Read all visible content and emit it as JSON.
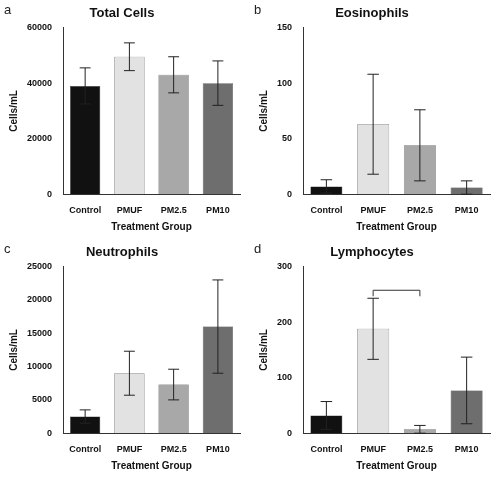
{
  "chart_data": [
    {
      "type": "bar",
      "panel": "a",
      "title": "Total Cells",
      "x_label": "Treatment Group",
      "y_label": "Cells/mL",
      "categories": [
        "Control",
        "PMUF",
        "PM2.5",
        "PM10"
      ],
      "values": [
        39000,
        49500,
        43000,
        40000
      ],
      "errors": [
        6500,
        5000,
        6500,
        8000
      ],
      "colors": [
        "#111111",
        "#e2e2e2",
        "#a8a8a8",
        "#6e6e6e"
      ],
      "ylim": [
        0,
        60000
      ],
      "yticks": [
        0,
        20000,
        40000,
        60000
      ],
      "grid": false
    },
    {
      "type": "bar",
      "panel": "b",
      "title": "Eosinophils",
      "x_label": "Treatment Group",
      "y_label": "Cells/mL",
      "categories": [
        "Control",
        "PMUF",
        "PM2.5",
        "PM10"
      ],
      "values": [
        7,
        63,
        44,
        6
      ],
      "errors": [
        6,
        45,
        32,
        6
      ],
      "colors": [
        "#111111",
        "#e2e2e2",
        "#a8a8a8",
        "#6e6e6e"
      ],
      "ylim": [
        0,
        150
      ],
      "yticks": [
        0,
        50,
        100,
        150
      ],
      "grid": false
    },
    {
      "type": "bar",
      "panel": "c",
      "title": "Neutrophils",
      "x_label": "Treatment Group",
      "y_label": "Cells/mL",
      "categories": [
        "Control",
        "PMUF",
        "PM2.5",
        "PM10"
      ],
      "values": [
        2500,
        9000,
        7300,
        16000
      ],
      "errors": [
        1000,
        3300,
        2300,
        7000
      ],
      "colors": [
        "#111111",
        "#e2e2e2",
        "#a8a8a8",
        "#6e6e6e"
      ],
      "ylim": [
        0,
        25000
      ],
      "yticks": [
        0,
        5000,
        10000,
        15000,
        20000,
        25000
      ],
      "grid": false
    },
    {
      "type": "bar",
      "panel": "d",
      "title": "Lymphocytes",
      "x_label": "Treatment Group",
      "y_label": "Cells/mL",
      "categories": [
        "Control",
        "PMUF",
        "PM2.5",
        "PM10"
      ],
      "values": [
        32,
        188,
        7,
        77
      ],
      "errors": [
        25,
        55,
        7,
        60
      ],
      "colors": [
        "#111111",
        "#e2e2e2",
        "#a8a8a8",
        "#6e6e6e"
      ],
      "ylim": [
        0,
        300
      ],
      "yticks": [
        0,
        100,
        200,
        300
      ],
      "grid": false,
      "significance": [
        [
          "PMUF",
          "PM2.5"
        ]
      ]
    }
  ]
}
